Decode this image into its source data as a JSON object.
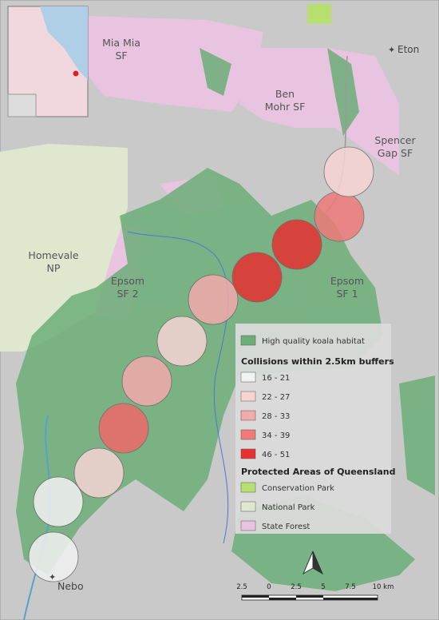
{
  "places": [
    {
      "lines": [
        "Mia Mia",
        "SF"
      ]
    },
    {
      "lines": [
        "Eton"
      ]
    },
    {
      "lines": [
        "Ben",
        "Mohr SF"
      ]
    },
    {
      "lines": [
        "Spencer",
        "Gap SF"
      ]
    },
    {
      "lines": [
        "Homevale",
        "NP"
      ]
    },
    {
      "lines": [
        "Epsom",
        "SF 2"
      ]
    },
    {
      "lines": [
        "Epsom",
        "SF 1"
      ]
    },
    {
      "lines": [
        "Nebo"
      ]
    }
  ],
  "legend": {
    "habitat": "High quality koala habitat",
    "collisions_title": "Collisions within 2.5km buffers",
    "collision_classes": [
      "16 - 21",
      "22 - 27",
      "28 - 33",
      "34 - 39",
      "46 - 51"
    ],
    "protected_title": "Protected Areas of Queensland",
    "protected": [
      "Conservation Park",
      "National Park",
      "State Forest"
    ]
  },
  "scale": [
    "2.5",
    "0",
    "2.5",
    "5",
    "7.5",
    "10 km"
  ]
}
